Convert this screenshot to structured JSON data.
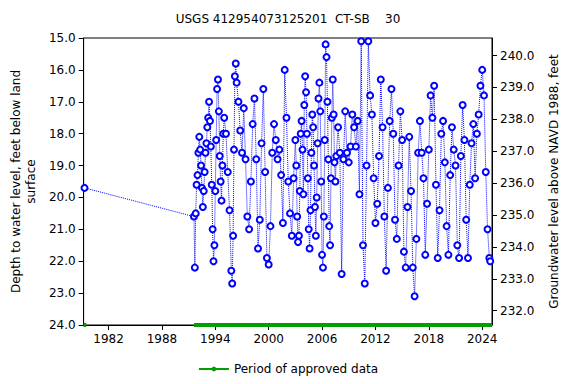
{
  "chart_data": {
    "type": "line",
    "title": "USGS 412954073125201  CT-SB    30",
    "y_label": "Depth to water level, feet below land\nsurface",
    "y2_label": "Groundwater level above NAVD 1988, feet",
    "xlim": [
      1979.2,
      2025.1
    ],
    "xticks": [
      1982,
      1988,
      1994,
      2000,
      2006,
      2012,
      2018,
      2024
    ],
    "ylim": [
      15,
      24
    ],
    "yticks": [
      {
        "value": 15,
        "label": "15.0"
      },
      {
        "value": 16,
        "label": "16.0"
      },
      {
        "value": 17,
        "label": "17.0"
      },
      {
        "value": 18,
        "label": "18.0"
      },
      {
        "value": 19,
        "label": "19.0"
      },
      {
        "value": 20,
        "label": "20.0"
      },
      {
        "value": 21,
        "label": "21.0"
      },
      {
        "value": 22,
        "label": "22.0"
      },
      {
        "value": 23,
        "label": "23.0"
      },
      {
        "value": 24,
        "label": "24.0"
      }
    ],
    "y2lim": [
      231.55,
      240.55
    ],
    "y2ticks": [
      {
        "value": 232,
        "label": "232.0"
      },
      {
        "value": 233,
        "label": "233.0"
      },
      {
        "value": 234,
        "label": "234.0"
      },
      {
        "value": 235,
        "label": "235.0"
      },
      {
        "value": 236,
        "label": "236.0"
      },
      {
        "value": 237,
        "label": "237.0"
      },
      {
        "value": 238,
        "label": "238.0"
      },
      {
        "value": 239,
        "label": "239.0"
      },
      {
        "value": 240,
        "label": "240.0"
      }
    ],
    "grid": false,
    "legend": "bottom",
    "series": [
      {
        "color": "#0000ff",
        "marker": "circle",
        "line_style": "dotted",
        "type": "line",
        "x": [
          1979.3,
          1991.6,
          1991.7,
          1991.8,
          1991.9,
          1992.0,
          1992.1,
          1992.2,
          1992.3,
          1992.4,
          1992.5,
          1992.6,
          1992.7,
          1992.8,
          1992.9,
          1993.0,
          1993.1,
          1993.2,
          1993.3,
          1993.4,
          1993.5,
          1993.6,
          1993.7,
          1993.8,
          1993.9,
          1994.0,
          1994.1,
          1994.2,
          1994.3,
          1994.4,
          1994.5,
          1994.6,
          1994.7,
          1994.8,
          1994.9,
          1995.0,
          1995.2,
          1995.4,
          1995.6,
          1995.8,
          1995.9,
          1996.0,
          1996.1,
          1996.2,
          1996.3,
          1996.4,
          1996.6,
          1996.8,
          1997.0,
          1997.2,
          1997.4,
          1997.6,
          1997.8,
          1998.0,
          1998.2,
          1998.4,
          1998.6,
          1998.8,
          1999.0,
          1999.2,
          1999.4,
          1999.6,
          1999.8,
          2000.0,
          2000.2,
          2000.4,
          2000.6,
          2000.8,
          2001.0,
          2001.2,
          2001.4,
          2001.6,
          2001.8,
          2002.0,
          2002.2,
          2002.4,
          2002.6,
          2002.8,
          2003.0,
          2003.1,
          2003.2,
          2003.3,
          2003.4,
          2003.5,
          2003.6,
          2003.7,
          2003.8,
          2003.9,
          2004.0,
          2004.1,
          2004.2,
          2004.3,
          2004.4,
          2004.5,
          2004.6,
          2004.7,
          2004.8,
          2004.9,
          2005.0,
          2005.1,
          2005.2,
          2005.3,
          2005.4,
          2005.5,
          2005.6,
          2005.7,
          2005.8,
          2005.9,
          2006.0,
          2006.1,
          2006.2,
          2006.3,
          2006.4,
          2006.5,
          2006.6,
          2006.7,
          2006.8,
          2006.9,
          2007.0,
          2007.1,
          2007.2,
          2007.3,
          2007.4,
          2007.5,
          2007.6,
          2007.8,
          2008.0,
          2008.2,
          2008.4,
          2008.6,
          2008.8,
          2009.0,
          2009.2,
          2009.4,
          2009.6,
          2009.8,
          2010.0,
          2010.2,
          2010.4,
          2010.6,
          2010.8,
          2011.0,
          2011.2,
          2011.4,
          2011.6,
          2011.8,
          2012.0,
          2012.2,
          2012.4,
          2012.6,
          2012.8,
          2013.0,
          2013.2,
          2013.4,
          2013.6,
          2013.8,
          2014.0,
          2014.2,
          2014.4,
          2014.6,
          2014.8,
          2015.0,
          2015.2,
          2015.4,
          2015.6,
          2015.8,
          2016.0,
          2016.2,
          2016.4,
          2016.6,
          2016.8,
          2017.0,
          2017.2,
          2017.4,
          2017.6,
          2017.8,
          2018.0,
          2018.2,
          2018.4,
          2018.6,
          2018.8,
          2019.0,
          2019.2,
          2019.4,
          2019.6,
          2019.8,
          2020.0,
          2020.2,
          2020.4,
          2020.6,
          2020.8,
          2021.0,
          2021.2,
          2021.4,
          2021.6,
          2021.8,
          2022.0,
          2022.2,
          2022.4,
          2022.6,
          2022.8,
          2023.0,
          2023.2,
          2023.4,
          2023.6,
          2023.8,
          2024.0,
          2024.2,
          2024.4,
          2024.6,
          2024.8,
          2024.9
        ],
        "values": [
          19.7,
          20.6,
          22.2,
          20.5,
          19.6,
          19.3,
          18.6,
          18.1,
          18.5,
          19.0,
          19.7,
          20.3,
          19.8,
          19.2,
          18.6,
          18.3,
          17.8,
          17.5,
          17.0,
          17.6,
          18.4,
          19.6,
          21.0,
          22.0,
          21.5,
          19.8,
          18.2,
          16.6,
          16.3,
          17.3,
          18.7,
          19.5,
          20.1,
          19.0,
          18.0,
          17.5,
          18.0,
          19.2,
          20.4,
          22.3,
          22.7,
          21.2,
          18.5,
          16.2,
          15.8,
          16.4,
          17.0,
          17.9,
          18.6,
          17.2,
          18.8,
          20.6,
          21.0,
          19.5,
          17.7,
          16.9,
          18.8,
          21.6,
          20.7,
          18.3,
          16.6,
          19.2,
          21.9,
          22.1,
          20.9,
          18.6,
          17.7,
          18.2,
          18.8,
          18.5,
          19.3,
          20.8,
          16.0,
          17.5,
          19.5,
          20.5,
          21.2,
          19.4,
          18.2,
          19.0,
          20.6,
          21.4,
          21.2,
          19.8,
          18.0,
          17.6,
          18.5,
          19.9,
          17.1,
          16.2,
          16.7,
          18.0,
          19.4,
          21.0,
          21.6,
          20.4,
          18.6,
          17.4,
          17.8,
          19.0,
          20.3,
          21.2,
          20.0,
          18.3,
          16.9,
          16.4,
          17.3,
          19.5,
          21.8,
          22.2,
          20.6,
          18.2,
          15.2,
          15.6,
          17.0,
          18.8,
          20.9,
          21.5,
          19.4,
          17.5,
          16.3,
          17.4,
          18.9,
          19.5,
          18.7,
          17.8,
          18.6,
          22.4,
          18.8,
          17.3,
          18.6,
          18.9,
          18.4,
          17.4,
          17.8,
          18.4,
          17.6,
          19.9,
          15.1,
          21.5,
          22.7,
          19.0,
          15.1,
          16.8,
          17.4,
          19.4,
          20.8,
          20.2,
          18.7,
          16.3,
          17.8,
          20.6,
          22.3,
          19.7,
          17.6,
          16.6,
          18.0,
          20.7,
          21.3,
          19.0,
          17.3,
          18.2,
          21.7,
          22.2,
          20.3,
          18.1,
          19.8,
          22.2,
          23.1,
          21.3,
          18.6,
          17.6,
          18.6,
          19.4,
          21.8,
          20.2,
          18.5,
          16.8,
          17.5,
          16.5,
          19.6,
          21.9,
          20.4,
          18.0,
          17.6,
          18.9,
          20.9,
          21.8,
          19.3,
          17.8,
          18.5,
          19.0,
          21.5,
          21.9,
          18.7,
          17.1,
          18.2,
          20.7,
          21.9,
          19.6,
          18.3,
          17.7,
          19.4,
          18.0,
          17.4,
          16.5,
          16.0,
          16.8,
          19.2,
          21.0,
          21.9,
          22.0
        ]
      },
      {
        "name": "Period of approved data",
        "color": "#00a000",
        "type": "line",
        "line_style": "solid",
        "x": [
          1979.2,
          1979.5,
          1985,
          1991.6,
          2025.1
        ],
        "values": [
          24,
          24,
          null,
          24,
          24
        ]
      }
    ]
  }
}
